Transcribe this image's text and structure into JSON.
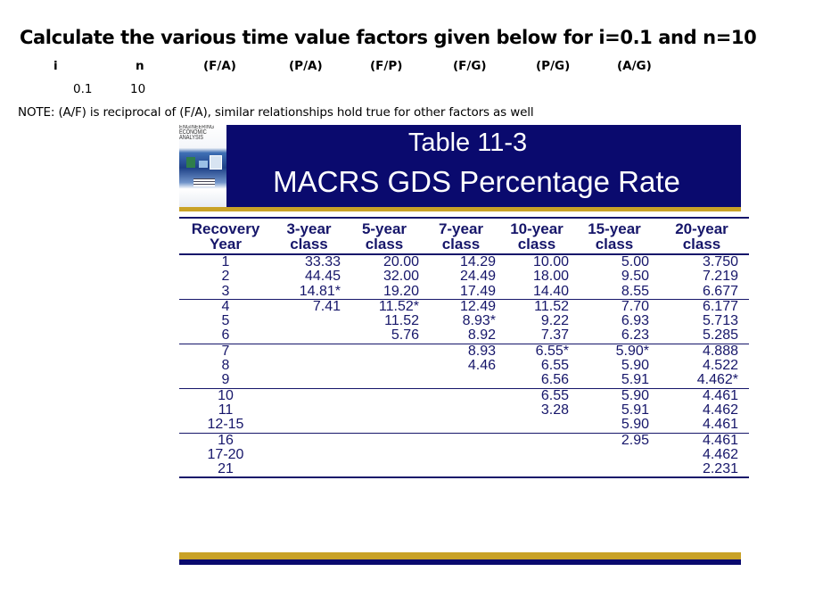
{
  "question": {
    "title": "Calculate the various time value factors given below for i=0.1 and n=10",
    "headers": [
      "i",
      "n",
      "(F/A)",
      "(P/A)",
      "(F/P)",
      "(F/G)",
      "(P/G)",
      "(A/G)"
    ],
    "values": [
      "0.1",
      "10"
    ],
    "note": "NOTE: (A/F) is reciprocal of (F/A), similar relationships hold true for other factors as well"
  },
  "slide": {
    "book_cover_text": "ENGINEERING ECONOMIC ANALYSIS",
    "title_line1": "Table 11-3",
    "title_line2": "MACRS GDS Percentage Rate",
    "colors": {
      "banner": "#0a0a6e",
      "stripe": "#c9a227",
      "table_text": "#16166a"
    }
  },
  "table": {
    "columns": [
      [
        "Recovery",
        "Year"
      ],
      [
        "3-year",
        "class"
      ],
      [
        "5-year",
        "class"
      ],
      [
        "7-year",
        "class"
      ],
      [
        "10-year",
        "class"
      ],
      [
        "15-year",
        "class"
      ],
      [
        "20-year",
        "class"
      ]
    ],
    "rows": [
      [
        "1",
        "33.33",
        "20.00",
        "14.29",
        "10.00",
        "5.00",
        "3.750"
      ],
      [
        "2",
        "44.45",
        "32.00",
        "24.49",
        "18.00",
        "9.50",
        "7.219"
      ],
      [
        "3",
        "14.81*",
        "19.20",
        "17.49",
        "14.40",
        "8.55",
        "6.677"
      ],
      [
        "4",
        "7.41",
        "11.52*",
        "12.49",
        "11.52",
        "7.70",
        "6.177"
      ],
      [
        "5",
        "",
        "11.52",
        "8.93*",
        "9.22",
        "6.93",
        "5.713"
      ],
      [
        "6",
        "",
        "5.76",
        "8.92",
        "7.37",
        "6.23",
        "5.285"
      ],
      [
        "7",
        "",
        "",
        "8.93",
        "6.55*",
        "5.90*",
        "4.888"
      ],
      [
        "8",
        "",
        "",
        "4.46",
        "6.55",
        "5.90",
        "4.522"
      ],
      [
        "9",
        "",
        "",
        "",
        "6.56",
        "5.91",
        "4.462*"
      ],
      [
        "10",
        "",
        "",
        "",
        "6.55",
        "5.90",
        "4.461"
      ],
      [
        "11",
        "",
        "",
        "",
        "3.28",
        "5.91",
        "4.462"
      ],
      [
        "12-15",
        "",
        "",
        "",
        "",
        "5.90",
        "4.461"
      ],
      [
        "16",
        "",
        "",
        "",
        "",
        "2.95",
        "4.461"
      ],
      [
        "17-20",
        "",
        "",
        "",
        "",
        "",
        "4.462"
      ],
      [
        "21",
        "",
        "",
        "",
        "",
        "",
        "2.231"
      ]
    ]
  }
}
